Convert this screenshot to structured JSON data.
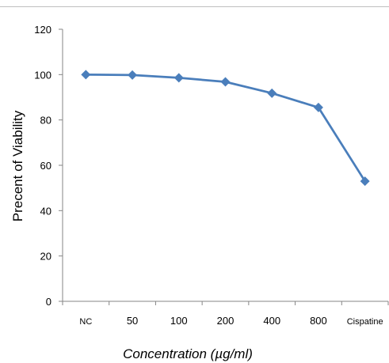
{
  "chart_data": {
    "type": "line",
    "categories": [
      "NC",
      "50",
      "100",
      "200",
      "400",
      "800",
      "Cispatine"
    ],
    "series": [
      {
        "values": [
          100,
          99.8,
          98.6,
          96.8,
          91.8,
          85.5,
          53.0
        ],
        "color": "#4A7EBB",
        "marker": "diamond"
      }
    ],
    "ylabel": "Precent of Viability",
    "xlabel": "Concentration (µg/ml)",
    "ylim": [
      0,
      120
    ],
    "yticks": [
      0,
      20,
      40,
      60,
      80,
      100,
      120
    ],
    "grid": false,
    "legend": "none"
  }
}
